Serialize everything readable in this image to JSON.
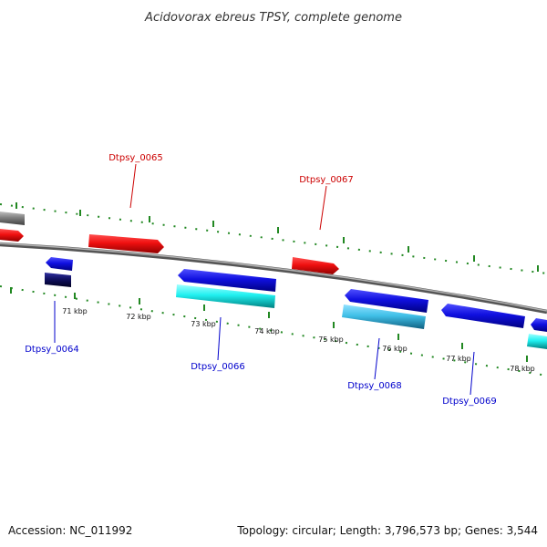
{
  "title": "Acidovorax ebreus TPSY, complete genome",
  "footer": {
    "accession": "Accession: NC_011992",
    "summary": "Topology: circular; Length: 3,796,573 bp; Genes: 3,544"
  },
  "colors": {
    "forward_gene": "#f01010",
    "reverse_gene": "#1010e0",
    "reverse_cds": "#20f0f0",
    "reverse_cds_alt": "#40c0e8",
    "dark_gene": "#101060",
    "grey_gene": "#808080",
    "backbone": "#888888",
    "ticks": "#228822"
  },
  "kbp_labels": [
    "71 kbp",
    "72 kbp",
    "73 kbp",
    "74 kbp",
    "75 kbp",
    "76 kbp",
    "77 kbp",
    "78 kbp"
  ],
  "gene_labels": {
    "top": [
      "Dtpsy_0065",
      "Dtpsy_0067"
    ],
    "bottom": [
      "Dtpsy_0064",
      "Dtpsy_0066",
      "Dtpsy_0068",
      "Dtpsy_0069"
    ]
  }
}
